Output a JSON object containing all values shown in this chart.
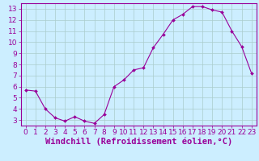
{
  "x": [
    0,
    1,
    2,
    3,
    4,
    5,
    6,
    7,
    8,
    9,
    10,
    11,
    12,
    13,
    14,
    15,
    16,
    17,
    18,
    19,
    20,
    21,
    22,
    23
  ],
  "y": [
    5.7,
    5.6,
    4.0,
    3.2,
    2.9,
    3.3,
    2.9,
    2.7,
    3.5,
    6.0,
    6.6,
    7.5,
    7.7,
    9.5,
    10.7,
    12.0,
    12.5,
    13.2,
    13.2,
    12.9,
    12.7,
    11.0,
    9.6,
    7.2
  ],
  "line_color": "#990099",
  "marker_color": "#990099",
  "bg_color": "#cceeff",
  "grid_color": "#aacccc",
  "xlabel": "Windchill (Refroidissement éolien,°C)",
  "xlim": [
    -0.5,
    23.5
  ],
  "ylim": [
    2.5,
    13.5
  ],
  "yticks": [
    3,
    4,
    5,
    6,
    7,
    8,
    9,
    10,
    11,
    12,
    13
  ],
  "xticks": [
    0,
    1,
    2,
    3,
    4,
    5,
    6,
    7,
    8,
    9,
    10,
    11,
    12,
    13,
    14,
    15,
    16,
    17,
    18,
    19,
    20,
    21,
    22,
    23
  ],
  "tick_color": "#990099",
  "font_size": 6.5,
  "xlabel_fontsize": 7.5
}
